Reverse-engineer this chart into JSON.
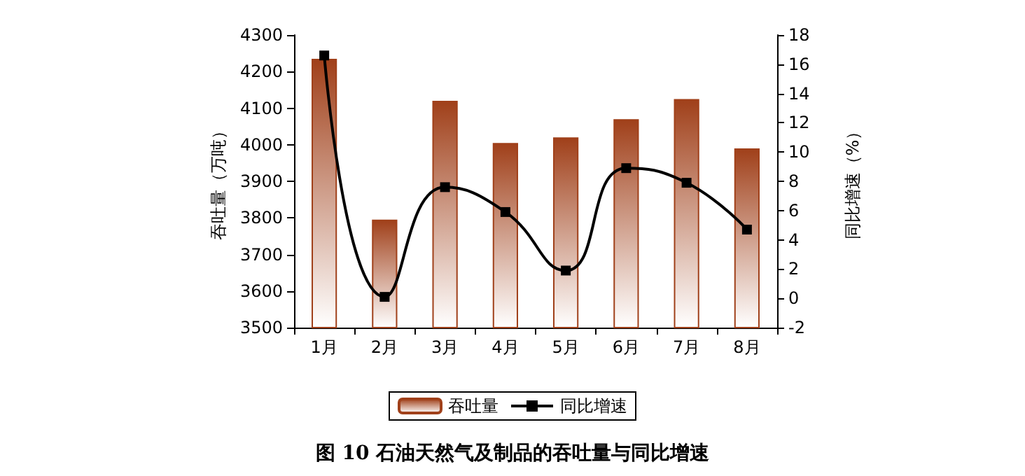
{
  "chart_data": {
    "type": "bar",
    "title": "图 10 石油天然气及制品的吞吐量与同比增速",
    "ylabel": "吞吐量（万吨）",
    "y2label": "同比增速（%）",
    "categories": [
      "1月",
      "2月",
      "3月",
      "4月",
      "5月",
      "6月",
      "7月",
      "8月"
    ],
    "series": [
      {
        "name": "吞吐量",
        "color": "#a0401a",
        "values": [
          4235,
          3795,
          4120,
          4005,
          4020,
          4070,
          4125,
          3990
        ]
      },
      {
        "name": "同比增速",
        "type": "line",
        "axis": "y2",
        "color": "#000000",
        "marker": "square",
        "values": [
          16.6,
          0.1,
          7.6,
          5.9,
          1.9,
          8.9,
          7.9,
          4.7
        ]
      }
    ],
    "ylim": [
      3500,
      4300
    ],
    "yticks": [
      3500,
      3600,
      3700,
      3800,
      3900,
      4000,
      4100,
      4200,
      4300
    ],
    "y2lim": [
      -2,
      18
    ],
    "y2ticks": [
      -2,
      0,
      2,
      4,
      6,
      8,
      10,
      12,
      14,
      16,
      18
    ],
    "grid": false,
    "legend": "bottom"
  }
}
